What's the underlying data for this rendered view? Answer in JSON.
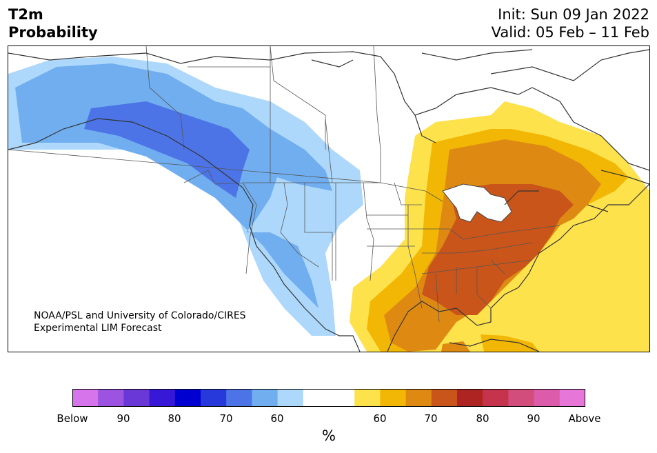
{
  "header": {
    "title_line1": "T2m",
    "title_line2": "Probability",
    "init": "Init: Sun 09 Jan 2022",
    "valid": "Valid: 05 Feb – 11 Feb"
  },
  "map": {
    "credit_line1": "NOAA/PSL and University of Colorado/CIRES",
    "credit_line2": "Experimental LIM Forecast",
    "below_colors": [
      "#add8fb",
      "#70aef0",
      "#4c74e6"
    ],
    "above_colors": [
      "#fee24c",
      "#f2b705",
      "#de8a12",
      "#c9551a"
    ]
  },
  "colorbar": {
    "unit": "%",
    "colors": [
      "#d675eb",
      "#9c53e0",
      "#6b38d8",
      "#3618d6",
      "#0000d0",
      "#2739da",
      "#4c74e6",
      "#70aef0",
      "#add8fb",
      "#ffffff",
      "#ffffff",
      "#fee24c",
      "#f2b705",
      "#de8a12",
      "#c9551a",
      "#ae2422",
      "#c5344c",
      "#d24d7c",
      "#dd5bab",
      "#e677d8"
    ],
    "tick_labels": [
      "Below",
      "90",
      "80",
      "70",
      "60",
      "60",
      "70",
      "80",
      "90",
      "Above"
    ]
  }
}
